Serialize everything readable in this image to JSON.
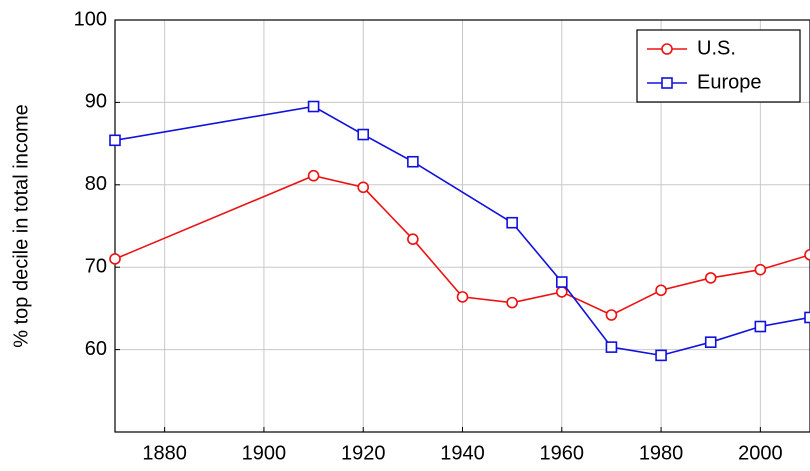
{
  "chart_data": {
    "type": "line",
    "y_label": "% top decile in total income",
    "xlim": [
      1870,
      2010
    ],
    "xticks": [
      1880,
      1900,
      1920,
      1940,
      1960,
      1980,
      2000
    ],
    "ylim": [
      50,
      100
    ],
    "yticks": [
      60,
      70,
      80,
      90,
      100
    ],
    "grid": true,
    "legend": "top-right",
    "series": [
      {
        "name": "U.S.",
        "color": "#ee1111",
        "marker": "circle",
        "x": [
          1870,
          1910,
          1920,
          1930,
          1940,
          1950,
          1960,
          1970,
          1980,
          1990,
          2000,
          2010
        ],
        "values": [
          71.0,
          81.1,
          79.7,
          73.4,
          66.4,
          65.7,
          67.0,
          64.2,
          67.2,
          68.7,
          69.7,
          71.5
        ]
      },
      {
        "name": "Europe",
        "color": "#1111dd",
        "marker": "square",
        "x": [
          1870,
          1910,
          1920,
          1930,
          1950,
          1960,
          1970,
          1980,
          1990,
          2000,
          2010
        ],
        "values": [
          85.4,
          89.5,
          86.1,
          82.8,
          75.4,
          68.2,
          60.3,
          59.3,
          60.9,
          62.8,
          63.9
        ]
      }
    ]
  }
}
